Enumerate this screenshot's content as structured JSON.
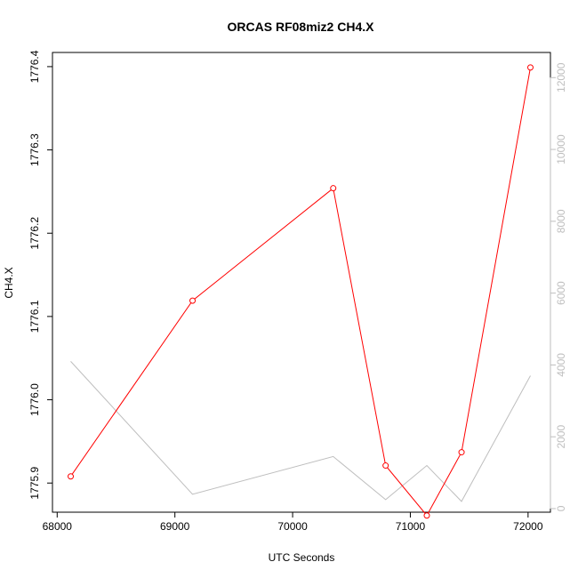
{
  "chart_data": {
    "type": "line",
    "title": "ORCAS RF08miz2 CH4.X",
    "xlabel": "UTC Seconds",
    "ylabel": "CH4.X",
    "xlim": [
      67960,
      72190
    ],
    "ylim": [
      1775.865,
      1776.417
    ],
    "y2lim": [
      -100,
      12700
    ],
    "x_ticks": [
      68000,
      69000,
      70000,
      71000,
      72000
    ],
    "y_ticks": [
      1775.9,
      1776.0,
      1776.1,
      1776.2,
      1776.3,
      1776.4
    ],
    "y2_ticks": [
      0,
      2000,
      4000,
      6000,
      8000,
      10000,
      12000
    ],
    "grid": false,
    "series": [
      {
        "axis": "left",
        "color": "#ff0000",
        "markers": true,
        "x": [
          68115,
          69150,
          70345,
          70790,
          71140,
          71435,
          72020
        ],
        "values": [
          1775.908,
          1776.119,
          1776.254,
          1775.921,
          1775.861,
          1775.937,
          1776.399
        ]
      },
      {
        "axis": "right",
        "color": "#bebebe",
        "markers": false,
        "x": [
          68115,
          69150,
          70345,
          70790,
          71140,
          71435,
          72020
        ],
        "values": [
          4100,
          400,
          1450,
          250,
          1200,
          200,
          3700
        ]
      }
    ]
  }
}
